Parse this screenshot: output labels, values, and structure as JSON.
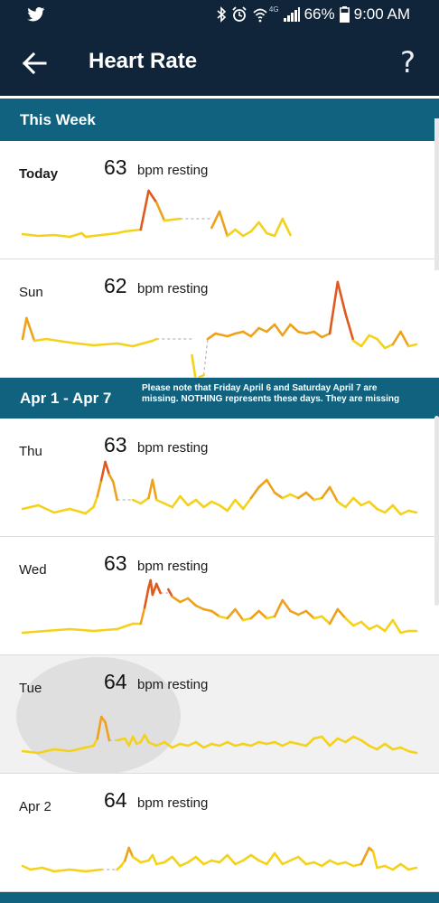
{
  "status_bar": {
    "network": "4G",
    "battery": "66%",
    "time": "9:00 AM"
  },
  "header": {
    "title": "Heart Rate",
    "help": "?"
  },
  "sections": [
    {
      "title": "This Week",
      "note": ""
    },
    {
      "title": "Apr 1 - Apr 7",
      "note": "Please note that Friday April 6 and Saturday April 7 are missing. NOTHING represents these days. They are missing"
    }
  ],
  "days": [
    {
      "label": "Today",
      "bpm": "63",
      "unit": "bpm resting",
      "trace": [
        [
          [
            0,
            0.07
          ],
          [
            0.04,
            0.05
          ],
          [
            0.08,
            0.06
          ],
          [
            0.12,
            0.04
          ],
          [
            0.15,
            0.08
          ],
          [
            0.16,
            0.04
          ],
          [
            0.2,
            0.06
          ],
          [
            0.24,
            0.08
          ],
          [
            0.26,
            0.1
          ],
          [
            0.3,
            0.12
          ],
          [
            0.32,
            0.55
          ],
          [
            0.34,
            0.42
          ],
          [
            0.36,
            0.22
          ],
          [
            0.4,
            0.24
          ]
        ],
        [
          [
            0.48,
            0.14
          ],
          [
            0.5,
            0.32
          ],
          [
            0.52,
            0.05
          ],
          [
            0.54,
            0.12
          ],
          [
            0.56,
            0.05
          ],
          [
            0.58,
            0.1
          ],
          [
            0.6,
            0.2
          ],
          [
            0.62,
            0.08
          ],
          [
            0.64,
            0.05
          ],
          [
            0.66,
            0.24
          ],
          [
            0.68,
            0.06
          ]
        ]
      ],
      "gaps": [
        [
          [
            0.4,
            0.24
          ],
          [
            0.48,
            0.24
          ]
        ]
      ]
    },
    {
      "label": "Sun",
      "bpm": "62",
      "unit": "bpm resting",
      "trace": [
        [
          [
            0,
            0.22
          ],
          [
            0.01,
            0.45
          ],
          [
            0.03,
            0.2
          ],
          [
            0.06,
            0.22
          ],
          [
            0.12,
            0.18
          ],
          [
            0.18,
            0.15
          ],
          [
            0.24,
            0.17
          ],
          [
            0.28,
            0.14
          ],
          [
            0.33,
            0.2
          ],
          [
            0.34,
            0.22
          ]
        ],
        [
          [
            0.43,
            0.04
          ],
          [
            0.44,
            -0.24
          ],
          [
            0.45,
            -0.2
          ],
          [
            0.46,
            -0.18
          ]
        ],
        [
          [
            0.47,
            0.22
          ],
          [
            0.49,
            0.28
          ],
          [
            0.52,
            0.25
          ],
          [
            0.54,
            0.28
          ],
          [
            0.56,
            0.3
          ],
          [
            0.58,
            0.25
          ],
          [
            0.6,
            0.34
          ],
          [
            0.62,
            0.3
          ],
          [
            0.64,
            0.38
          ],
          [
            0.66,
            0.26
          ],
          [
            0.68,
            0.38
          ],
          [
            0.7,
            0.3
          ],
          [
            0.72,
            0.28
          ],
          [
            0.74,
            0.3
          ],
          [
            0.76,
            0.24
          ],
          [
            0.78,
            0.28
          ],
          [
            0.8,
            0.85
          ],
          [
            0.82,
            0.5
          ],
          [
            0.84,
            0.2
          ],
          [
            0.86,
            0.14
          ],
          [
            0.88,
            0.26
          ],
          [
            0.9,
            0.22
          ],
          [
            0.92,
            0.12
          ],
          [
            0.94,
            0.16
          ],
          [
            0.96,
            0.3
          ],
          [
            0.98,
            0.14
          ],
          [
            1.0,
            0.16
          ]
        ]
      ],
      "gaps": [
        [
          [
            0.34,
            0.22
          ],
          [
            0.43,
            0.22
          ]
        ],
        [
          [
            0.46,
            -0.18
          ],
          [
            0.47,
            0.22
          ]
        ]
      ]
    },
    {
      "label": "Thu",
      "bpm": "63",
      "unit": "bpm resting",
      "trace": [
        [
          [
            0,
            0.1
          ],
          [
            0.04,
            0.14
          ],
          [
            0.08,
            0.06
          ],
          [
            0.12,
            0.1
          ],
          [
            0.16,
            0.05
          ],
          [
            0.18,
            0.12
          ],
          [
            0.19,
            0.24
          ],
          [
            0.2,
            0.42
          ],
          [
            0.21,
            0.62
          ],
          [
            0.22,
            0.48
          ],
          [
            0.23,
            0.4
          ],
          [
            0.24,
            0.2
          ]
        ],
        [
          [
            0.28,
            0.2
          ],
          [
            0.3,
            0.16
          ],
          [
            0.32,
            0.22
          ],
          [
            0.33,
            0.42
          ],
          [
            0.34,
            0.2
          ],
          [
            0.36,
            0.16
          ],
          [
            0.38,
            0.12
          ],
          [
            0.4,
            0.24
          ],
          [
            0.42,
            0.14
          ],
          [
            0.44,
            0.2
          ],
          [
            0.46,
            0.12
          ],
          [
            0.48,
            0.18
          ],
          [
            0.5,
            0.14
          ],
          [
            0.52,
            0.08
          ],
          [
            0.54,
            0.2
          ],
          [
            0.56,
            0.1
          ],
          [
            0.58,
            0.22
          ],
          [
            0.6,
            0.34
          ],
          [
            0.62,
            0.42
          ],
          [
            0.64,
            0.28
          ],
          [
            0.66,
            0.22
          ],
          [
            0.68,
            0.26
          ],
          [
            0.7,
            0.22
          ],
          [
            0.72,
            0.28
          ],
          [
            0.74,
            0.2
          ],
          [
            0.76,
            0.22
          ],
          [
            0.78,
            0.34
          ],
          [
            0.8,
            0.18
          ],
          [
            0.82,
            0.12
          ],
          [
            0.84,
            0.22
          ],
          [
            0.86,
            0.14
          ],
          [
            0.88,
            0.18
          ],
          [
            0.9,
            0.1
          ],
          [
            0.92,
            0.06
          ],
          [
            0.94,
            0.14
          ],
          [
            0.96,
            0.04
          ],
          [
            0.98,
            0.08
          ],
          [
            1.0,
            0.06
          ]
        ]
      ],
      "gaps": [
        [
          [
            0.24,
            0.2
          ],
          [
            0.28,
            0.2
          ]
        ]
      ]
    },
    {
      "label": "Wed",
      "bpm": "63",
      "unit": "bpm resting",
      "trace": [
        [
          [
            0,
            0.04
          ],
          [
            0.06,
            0.06
          ],
          [
            0.12,
            0.08
          ],
          [
            0.18,
            0.06
          ],
          [
            0.24,
            0.08
          ],
          [
            0.28,
            0.14
          ],
          [
            0.3,
            0.14
          ],
          [
            0.31,
            0.32
          ],
          [
            0.32,
            0.54
          ],
          [
            0.325,
            0.62
          ],
          [
            0.33,
            0.46
          ],
          [
            0.34,
            0.58
          ],
          [
            0.35,
            0.48
          ]
        ],
        [
          [
            0.37,
            0.52
          ],
          [
            0.38,
            0.44
          ],
          [
            0.4,
            0.38
          ],
          [
            0.42,
            0.42
          ],
          [
            0.44,
            0.34
          ],
          [
            0.46,
            0.3
          ],
          [
            0.48,
            0.28
          ],
          [
            0.5,
            0.22
          ],
          [
            0.52,
            0.2
          ],
          [
            0.54,
            0.3
          ],
          [
            0.56,
            0.18
          ],
          [
            0.58,
            0.2
          ],
          [
            0.6,
            0.28
          ],
          [
            0.62,
            0.2
          ],
          [
            0.64,
            0.22
          ],
          [
            0.66,
            0.4
          ],
          [
            0.68,
            0.28
          ],
          [
            0.7,
            0.24
          ],
          [
            0.72,
            0.28
          ],
          [
            0.74,
            0.2
          ],
          [
            0.76,
            0.22
          ],
          [
            0.78,
            0.14
          ],
          [
            0.8,
            0.3
          ],
          [
            0.82,
            0.2
          ],
          [
            0.84,
            0.12
          ],
          [
            0.86,
            0.16
          ],
          [
            0.88,
            0.08
          ],
          [
            0.9,
            0.12
          ],
          [
            0.92,
            0.06
          ],
          [
            0.94,
            0.18
          ],
          [
            0.96,
            0.04
          ],
          [
            0.98,
            0.06
          ],
          [
            1.0,
            0.06
          ]
        ]
      ],
      "gaps": [
        [
          [
            0.35,
            0.48
          ],
          [
            0.37,
            0.48
          ]
        ]
      ]
    },
    {
      "label": "Tue",
      "bpm": "64",
      "unit": "bpm resting",
      "trace": [
        [
          [
            0,
            0.04
          ],
          [
            0.04,
            0.02
          ],
          [
            0.08,
            0.06
          ],
          [
            0.12,
            0.04
          ],
          [
            0.16,
            0.08
          ],
          [
            0.18,
            0.1
          ],
          [
            0.19,
            0.18
          ],
          [
            0.2,
            0.42
          ],
          [
            0.21,
            0.36
          ],
          [
            0.22,
            0.16
          ]
        ],
        [
          [
            0.24,
            0.16
          ],
          [
            0.26,
            0.18
          ],
          [
            0.27,
            0.1
          ],
          [
            0.28,
            0.2
          ],
          [
            0.29,
            0.12
          ],
          [
            0.3,
            0.14
          ],
          [
            0.31,
            0.22
          ],
          [
            0.32,
            0.14
          ],
          [
            0.34,
            0.1
          ],
          [
            0.36,
            0.14
          ],
          [
            0.38,
            0.08
          ],
          [
            0.4,
            0.12
          ],
          [
            0.42,
            0.1
          ],
          [
            0.44,
            0.14
          ],
          [
            0.46,
            0.08
          ],
          [
            0.48,
            0.12
          ],
          [
            0.5,
            0.1
          ],
          [
            0.52,
            0.14
          ],
          [
            0.54,
            0.1
          ],
          [
            0.56,
            0.12
          ],
          [
            0.58,
            0.1
          ],
          [
            0.6,
            0.14
          ],
          [
            0.62,
            0.12
          ],
          [
            0.64,
            0.14
          ],
          [
            0.66,
            0.1
          ],
          [
            0.68,
            0.14
          ],
          [
            0.7,
            0.12
          ],
          [
            0.72,
            0.1
          ],
          [
            0.74,
            0.18
          ],
          [
            0.76,
            0.2
          ],
          [
            0.78,
            0.1
          ],
          [
            0.8,
            0.18
          ],
          [
            0.82,
            0.14
          ],
          [
            0.84,
            0.2
          ],
          [
            0.86,
            0.16
          ],
          [
            0.88,
            0.1
          ],
          [
            0.9,
            0.06
          ],
          [
            0.92,
            0.12
          ],
          [
            0.94,
            0.06
          ],
          [
            0.96,
            0.08
          ],
          [
            0.98,
            0.04
          ],
          [
            1.0,
            0.02
          ]
        ]
      ],
      "gaps": [
        [
          [
            0.22,
            0.16
          ],
          [
            0.24,
            0.16
          ]
        ]
      ]
    },
    {
      "label": "Apr 2",
      "bpm": "64",
      "unit": "bpm resting",
      "trace": [
        [
          [
            0,
            0.08
          ],
          [
            0.02,
            0.04
          ],
          [
            0.05,
            0.06
          ],
          [
            0.08,
            0.02
          ],
          [
            0.12,
            0.04
          ],
          [
            0.16,
            0.02
          ],
          [
            0.2,
            0.04
          ]
        ],
        [
          [
            0.24,
            0.04
          ],
          [
            0.25,
            0.08
          ],
          [
            0.26,
            0.14
          ],
          [
            0.27,
            0.28
          ],
          [
            0.28,
            0.18
          ],
          [
            0.3,
            0.12
          ],
          [
            0.32,
            0.14
          ],
          [
            0.33,
            0.2
          ],
          [
            0.34,
            0.1
          ],
          [
            0.36,
            0.12
          ],
          [
            0.38,
            0.18
          ],
          [
            0.4,
            0.08
          ],
          [
            0.42,
            0.12
          ],
          [
            0.44,
            0.18
          ],
          [
            0.46,
            0.1
          ],
          [
            0.48,
            0.14
          ],
          [
            0.5,
            0.12
          ],
          [
            0.52,
            0.2
          ],
          [
            0.54,
            0.1
          ],
          [
            0.56,
            0.14
          ],
          [
            0.58,
            0.2
          ],
          [
            0.6,
            0.14
          ],
          [
            0.62,
            0.1
          ],
          [
            0.64,
            0.22
          ],
          [
            0.66,
            0.1
          ],
          [
            0.68,
            0.14
          ],
          [
            0.7,
            0.18
          ],
          [
            0.72,
            0.1
          ],
          [
            0.74,
            0.12
          ],
          [
            0.76,
            0.08
          ],
          [
            0.78,
            0.14
          ],
          [
            0.8,
            0.1
          ],
          [
            0.82,
            0.12
          ],
          [
            0.84,
            0.08
          ],
          [
            0.86,
            0.1
          ],
          [
            0.88,
            0.28
          ],
          [
            0.89,
            0.24
          ],
          [
            0.9,
            0.06
          ],
          [
            0.92,
            0.08
          ],
          [
            0.94,
            0.04
          ],
          [
            0.96,
            0.1
          ],
          [
            0.98,
            0.04
          ],
          [
            1.0,
            0.06
          ]
        ]
      ],
      "gaps": [
        [
          [
            0.2,
            0.04
          ],
          [
            0.24,
            0.04
          ]
        ]
      ]
    }
  ],
  "colors": {
    "app_bar": "#10243a",
    "section_header": "#10627f",
    "trace_low": "#f4d21a",
    "trace_mid": "#eea21b",
    "trace_high": "#e05a1f",
    "gap_line": "#b9b9b9"
  }
}
